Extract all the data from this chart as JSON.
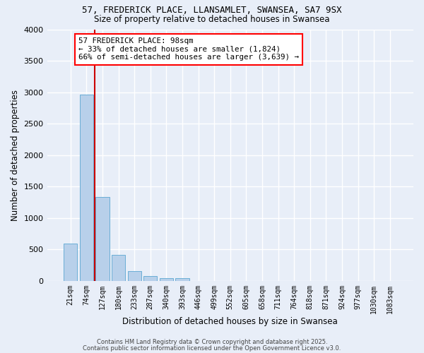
{
  "title_line1": "57, FREDERICK PLACE, LLANSAMLET, SWANSEA, SA7 9SX",
  "title_line2": "Size of property relative to detached houses in Swansea",
  "xlabel": "Distribution of detached houses by size in Swansea",
  "ylabel": "Number of detached properties",
  "categories": [
    "21sqm",
    "74sqm",
    "127sqm",
    "180sqm",
    "233sqm",
    "287sqm",
    "340sqm",
    "393sqm",
    "446sqm",
    "499sqm",
    "552sqm",
    "605sqm",
    "658sqm",
    "711sqm",
    "764sqm",
    "818sqm",
    "871sqm",
    "924sqm",
    "977sqm",
    "1030sqm",
    "1083sqm"
  ],
  "values": [
    590,
    2960,
    1330,
    420,
    160,
    75,
    50,
    40,
    0,
    0,
    0,
    0,
    0,
    0,
    0,
    0,
    0,
    0,
    0,
    0,
    0
  ],
  "bar_color": "#b8d0ea",
  "bar_edge_color": "#6aaed6",
  "vline_color": "#cc0000",
  "vline_x": 1.5,
  "annotation_text": "57 FREDERICK PLACE: 98sqm\n← 33% of detached houses are smaller (1,824)\n66% of semi-detached houses are larger (3,639) →",
  "annotation_box_color": "white",
  "annotation_box_edge": "red",
  "ylim": [
    0,
    4000
  ],
  "yticks": [
    0,
    500,
    1000,
    1500,
    2000,
    2500,
    3000,
    3500,
    4000
  ],
  "background_color": "#e8eef8",
  "grid_color": "#ffffff",
  "footer_line1": "Contains HM Land Registry data © Crown copyright and database right 2025.",
  "footer_line2": "Contains public sector information licensed under the Open Government Licence v3.0."
}
